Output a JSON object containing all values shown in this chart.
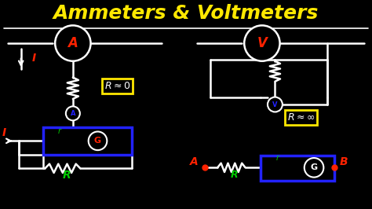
{
  "title": "Ammeters & Voltmeters",
  "title_color": "#FFE800",
  "bg_color": "#000000",
  "white": "#FFFFFF",
  "red": "#FF2200",
  "green": "#00CC00",
  "blue": "#2222FF",
  "yellow": "#FFE800",
  "figsize": [
    4.74,
    2.66
  ],
  "dpi": 100,
  "xlim": [
    0,
    10
  ],
  "ylim": [
    0,
    5.6
  ]
}
